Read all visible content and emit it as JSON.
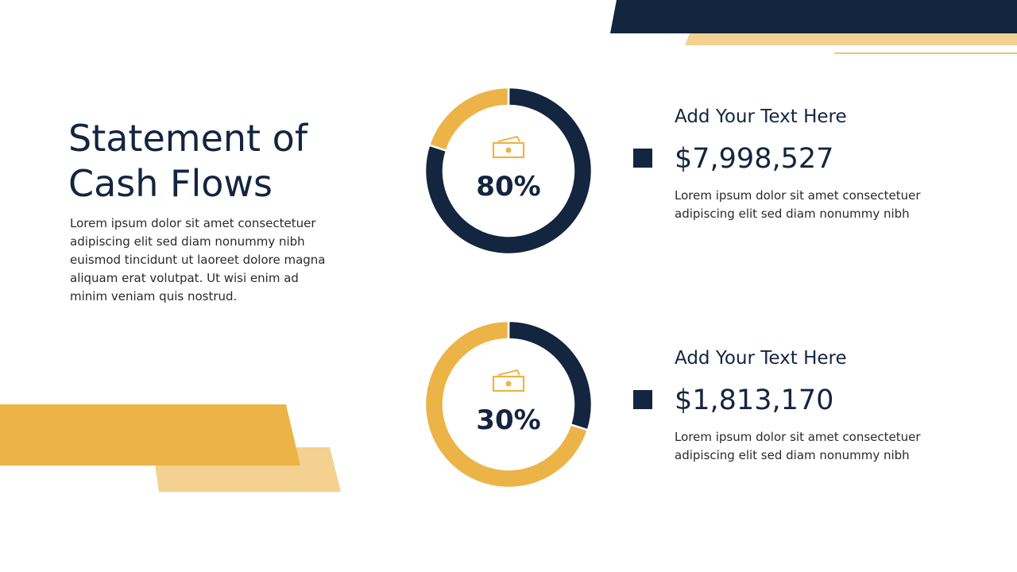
{
  "title": [
    "Statement of",
    "Cash Flows"
  ],
  "body": [
    "Lorem ipsum dolor sit amet consectetuer",
    "adipiscing elit sed diam nonummy nibh",
    "euismod tincidunt ut laoreet dolore magna",
    "aliquam erat volutpat. Ut wisi enim ad",
    "minim veniam quis nostrud."
  ],
  "items": [
    {
      "heading": "Add Your Text Here",
      "amount": "$7,998,527",
      "text": [
        "Lorem ipsum dolor sit amet consectetuer",
        "adipiscing elit sed diam nonummy nibh"
      ]
    },
    {
      "heading": "Add Your Text Here",
      "amount": "$1,813,170",
      "text": [
        "Lorem ipsum dolor sit amet consectetuer",
        "adipiscing elit sed diam nonummy nibh"
      ]
    }
  ],
  "chart_data": [
    {
      "type": "donut",
      "values": [
        80,
        20
      ],
      "value_labels": [
        "80%",
        null
      ],
      "colors": [
        "#13253f",
        "#ecb347"
      ]
    },
    {
      "type": "donut",
      "values": [
        30,
        70
      ],
      "value_labels": [
        "30%",
        null
      ],
      "colors": [
        "#13253f",
        "#ecb347"
      ]
    }
  ]
}
